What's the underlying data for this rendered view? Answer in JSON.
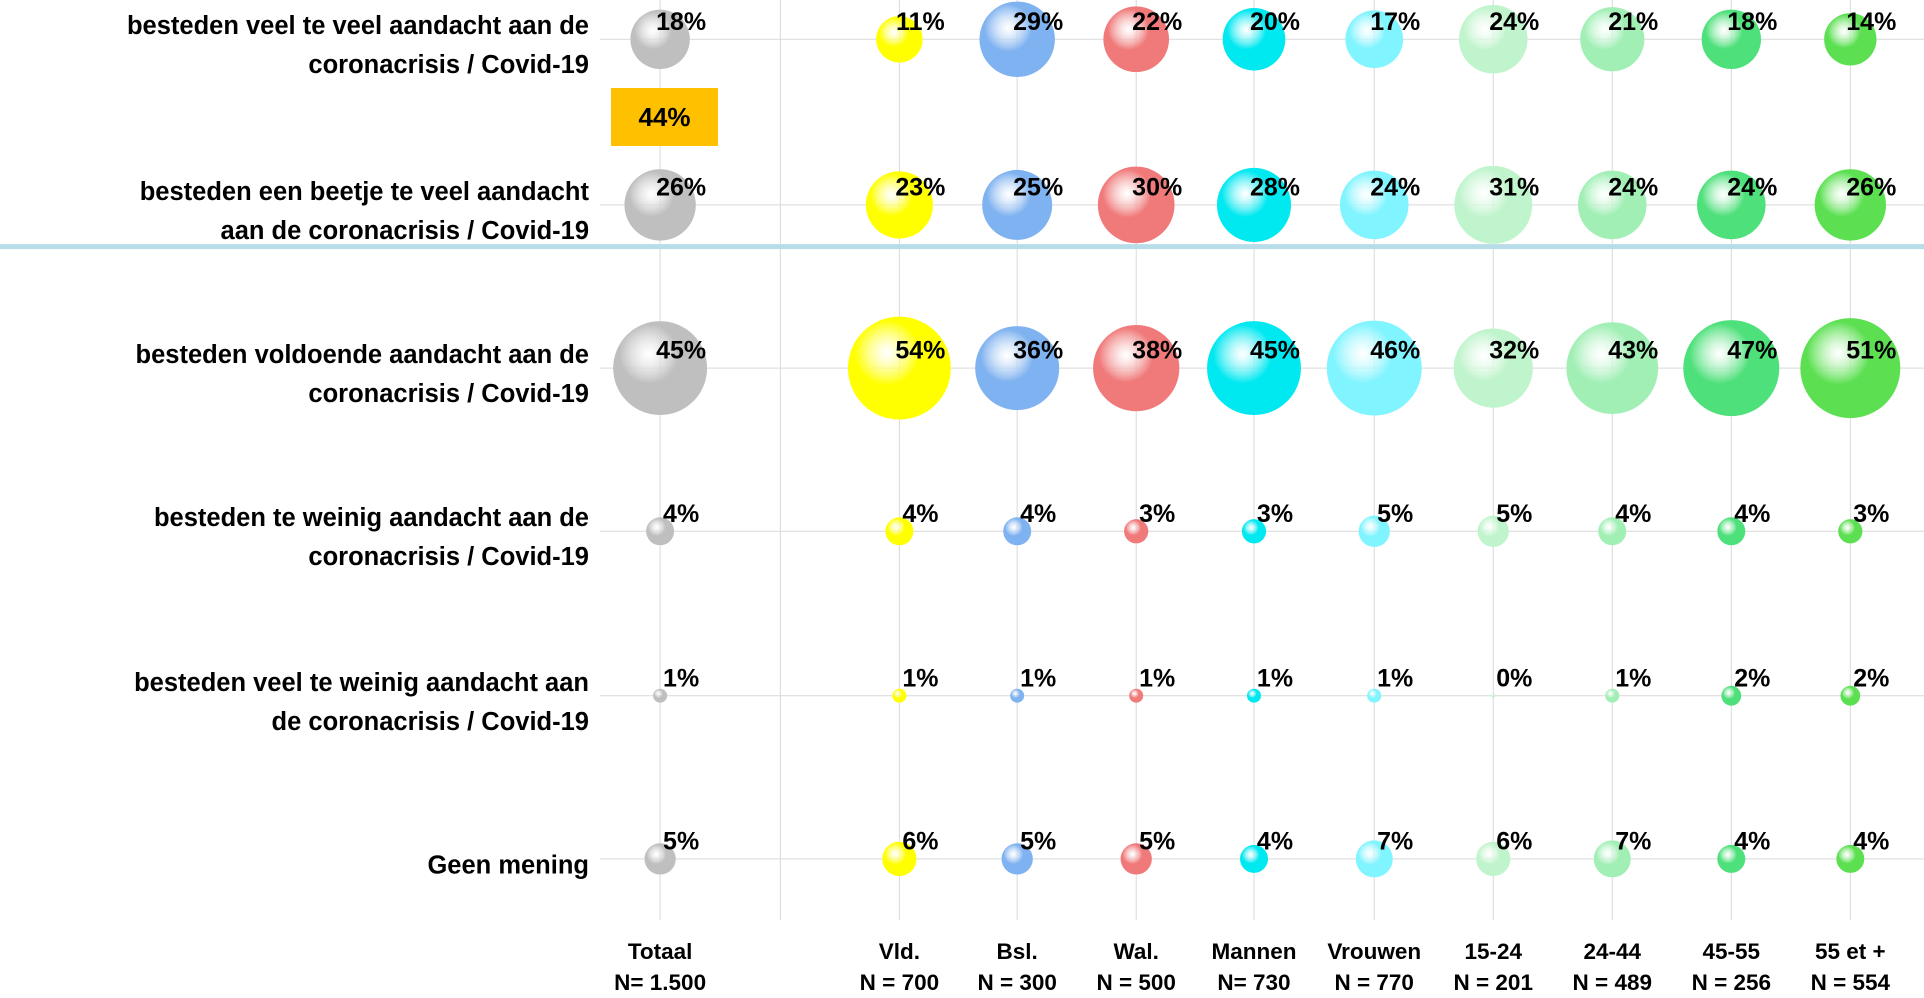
{
  "chart_data": {
    "type": "bubble",
    "badge": "44%",
    "categories": [
      "Totaal\nN= 1.500",
      "Vld.\nN = 700",
      "Bsl.\nN = 300",
      "Wal.\nN = 500",
      "Mannen\nN= 730",
      "Vrouwen\nN = 770",
      "15-24\nN = 201",
      "24-44\nN = 489",
      "45-55\nN = 256",
      "55 et +\nN = 554"
    ],
    "colors": [
      "#bfbfbf",
      "#ffff00",
      "#7fb2f0",
      "#f07a7a",
      "#00e8f0",
      "#80f4ff",
      "#c0f4cc",
      "#a2efb6",
      "#4ee07a",
      "#5ce052"
    ],
    "series": [
      {
        "name": "besteden veel te veel aandacht aan de\ncoronacrisis / Covid-19",
        "values": [
          18,
          11,
          29,
          22,
          20,
          17,
          24,
          21,
          18,
          14
        ],
        "value_labels": [
          "18%",
          "11%",
          "29%",
          "22%",
          "20%",
          "17%",
          "24%",
          "21%",
          "18%",
          "14%"
        ]
      },
      {
        "name": "besteden een beetje te veel aandacht\naan de coronacrisis / Covid-19",
        "values": [
          26,
          23,
          25,
          30,
          28,
          24,
          31,
          24,
          24,
          26
        ],
        "value_labels": [
          "26%",
          "23%",
          "25%",
          "30%",
          "28%",
          "24%",
          "31%",
          "24%",
          "24%",
          "26%"
        ]
      },
      {
        "name": "besteden voldoende aandacht aan de\ncoronacrisis / Covid-19",
        "values": [
          45,
          54,
          36,
          38,
          45,
          46,
          32,
          43,
          47,
          51
        ],
        "value_labels": [
          "45%",
          "54%",
          "36%",
          "38%",
          "45%",
          "46%",
          "32%",
          "43%",
          "47%",
          "51%"
        ]
      },
      {
        "name": "besteden te weinig aandacht aan de\ncoronacrisis / Covid-19",
        "values": [
          4,
          4,
          4,
          3,
          3,
          5,
          5,
          4,
          4,
          3
        ],
        "value_labels": [
          "4%",
          "4%",
          "4%",
          "3%",
          "3%",
          "5%",
          "5%",
          "4%",
          "4%",
          "3%"
        ]
      },
      {
        "name": "besteden veel te weinig aandacht aan\nde coronacrisis / Covid-19",
        "values": [
          1,
          1,
          1,
          1,
          1,
          1,
          0,
          1,
          2,
          2
        ],
        "value_labels": [
          "1%",
          "1%",
          "1%",
          "1%",
          "1%",
          "1%",
          "0%",
          "1%",
          "2%",
          "2%"
        ]
      },
      {
        "name": "Geen mening",
        "values": [
          5,
          6,
          5,
          5,
          4,
          7,
          6,
          7,
          4,
          4
        ],
        "value_labels": [
          "5%",
          "6%",
          "5%",
          "5%",
          "4%",
          "7%",
          "6%",
          "7%",
          "4%",
          "4%"
        ]
      }
    ]
  }
}
